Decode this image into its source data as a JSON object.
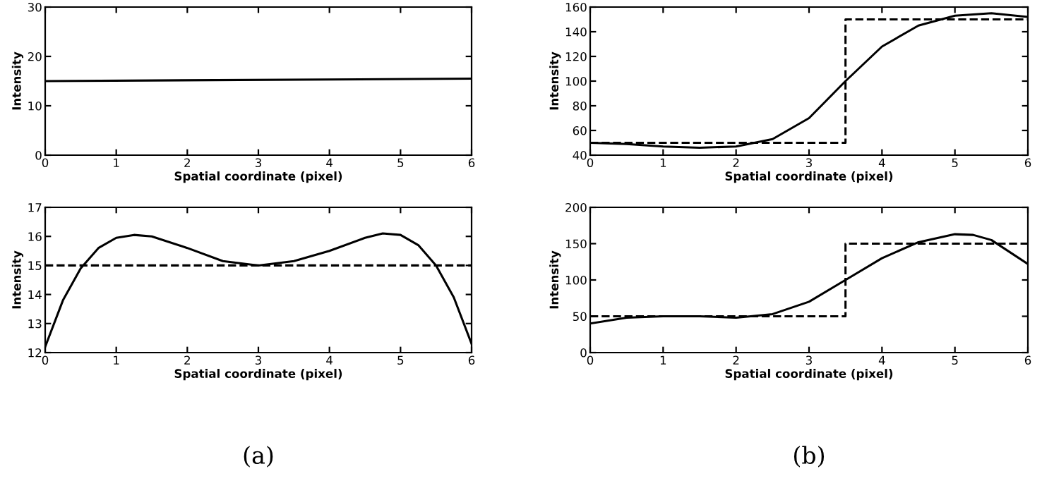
{
  "chart_data": [
    {
      "type": "line",
      "xlabel": "Spatial coordinate (pixel)",
      "ylabel": "Intensity",
      "xlim": [
        0,
        6
      ],
      "xticks": [
        0,
        1,
        2,
        3,
        4,
        5,
        6
      ],
      "ylim": [
        0,
        30
      ],
      "yticks": [
        0,
        10,
        20,
        30
      ],
      "grid": false,
      "legend": false,
      "series": [
        {
          "color": "#000000",
          "line_style": "solid",
          "x": [
            0,
            6
          ],
          "values": [
            15,
            15.5
          ]
        }
      ]
    },
    {
      "type": "line",
      "xlabel": "Spatial coordinate (pixel)",
      "ylabel": "Intensity",
      "xlim": [
        0,
        6
      ],
      "xticks": [
        0,
        1,
        2,
        3,
        4,
        5,
        6
      ],
      "ylim": [
        40,
        160
      ],
      "yticks": [
        40,
        60,
        80,
        100,
        120,
        140,
        160
      ],
      "grid": false,
      "legend": false,
      "series": [
        {
          "type": "step",
          "color": "#000000",
          "line_style": "dashed",
          "x": [
            0,
            3.5,
            6
          ],
          "values": [
            50,
            150,
            150
          ]
        },
        {
          "color": "#000000",
          "line_style": "solid",
          "x": [
            0,
            0.5,
            1,
            1.5,
            2,
            2.5,
            3,
            3.5,
            4,
            4.5,
            5,
            5.5,
            6
          ],
          "values": [
            50,
            49,
            47,
            46,
            47,
            53,
            70,
            100,
            128,
            145,
            153,
            155,
            152
          ]
        }
      ]
    },
    {
      "type": "line",
      "xlabel": "Spatial coordinate (pixel)",
      "ylabel": "Intensity",
      "xlim": [
        0,
        6
      ],
      "xticks": [
        0,
        1,
        2,
        3,
        4,
        5,
        6
      ],
      "ylim": [
        12,
        17
      ],
      "yticks": [
        12,
        13,
        14,
        15,
        16,
        17
      ],
      "grid": false,
      "legend": false,
      "annotations": [
        "(a)"
      ],
      "series": [
        {
          "color": "#000000",
          "line_style": "dashed",
          "x": [
            0,
            6
          ],
          "values": [
            15,
            15
          ]
        },
        {
          "color": "#000000",
          "line_style": "solid",
          "x": [
            0,
            0.25,
            0.5,
            0.75,
            1,
            1.25,
            1.5,
            2,
            2.5,
            3,
            3.5,
            4,
            4.5,
            4.75,
            5,
            5.25,
            5.5,
            5.75,
            6
          ],
          "values": [
            12.2,
            13.8,
            14.9,
            15.6,
            15.95,
            16.05,
            16.0,
            15.6,
            15.15,
            15.0,
            15.15,
            15.5,
            15.95,
            16.1,
            16.05,
            15.7,
            15.0,
            13.9,
            12.3
          ]
        }
      ]
    },
    {
      "type": "line",
      "xlabel": "Spatial coordinate (pixel)",
      "ylabel": "Intensity",
      "xlim": [
        0,
        6
      ],
      "xticks": [
        0,
        1,
        2,
        3,
        4,
        5,
        6
      ],
      "ylim": [
        0,
        200
      ],
      "yticks": [
        0,
        50,
        100,
        150,
        200
      ],
      "grid": false,
      "legend": false,
      "annotations": [
        "(b)"
      ],
      "series": [
        {
          "type": "step",
          "color": "#000000",
          "line_style": "dashed",
          "x": [
            0,
            3.5,
            6
          ],
          "values": [
            50,
            150,
            150
          ]
        },
        {
          "color": "#000000",
          "line_style": "solid",
          "x": [
            0,
            0.5,
            1,
            1.5,
            2,
            2.5,
            3,
            3.5,
            4,
            4.5,
            5,
            5.25,
            5.5,
            6
          ],
          "values": [
            40,
            48,
            50,
            50,
            48,
            53,
            70,
            100,
            130,
            152,
            163,
            162,
            155,
            122
          ]
        }
      ]
    }
  ]
}
